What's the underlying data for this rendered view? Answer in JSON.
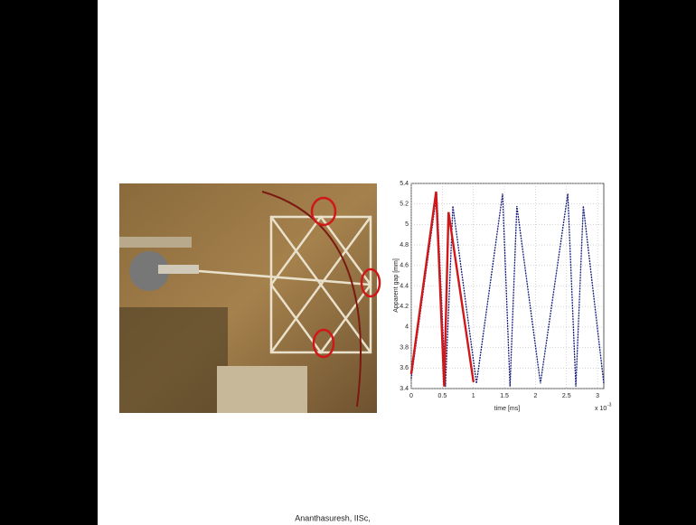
{
  "footer": "Ananthasuresh, IISc,",
  "chart_data": {
    "type": "line",
    "y_label": "Apparent gap [mm]",
    "x_label": "time [ms]",
    "x_scale_label": "x 10",
    "x_scale_exponent": "-3",
    "xlim": [
      0,
      3.1
    ],
    "xticks": [
      0,
      0.5,
      1,
      1.5,
      2,
      2.5,
      3
    ],
    "ylim": [
      3.4,
      5.4
    ],
    "yticks": [
      3.4,
      3.6,
      3.8,
      4,
      4.2,
      4.4,
      4.6,
      4.8,
      5,
      5.2,
      5.4
    ],
    "grid": true,
    "series": [
      {
        "color": "#1a237e",
        "style": "dotted",
        "x": [
          0,
          0.41,
          0.55,
          0.67,
          1.05,
          1.47,
          1.59,
          1.7,
          2.08,
          2.52,
          2.65,
          2.77,
          3.1
        ],
        "values": [
          3.5,
          5.3,
          3.42,
          5.18,
          3.45,
          5.3,
          3.42,
          5.18,
          3.45,
          5.3,
          3.42,
          5.18,
          3.45
        ]
      },
      {
        "color": "#d01818",
        "style": "solid",
        "x": [
          0,
          0.4,
          0.53,
          0.6,
          1.0
        ],
        "values": [
          3.55,
          5.32,
          3.42,
          5.12,
          3.47
        ]
      }
    ]
  }
}
